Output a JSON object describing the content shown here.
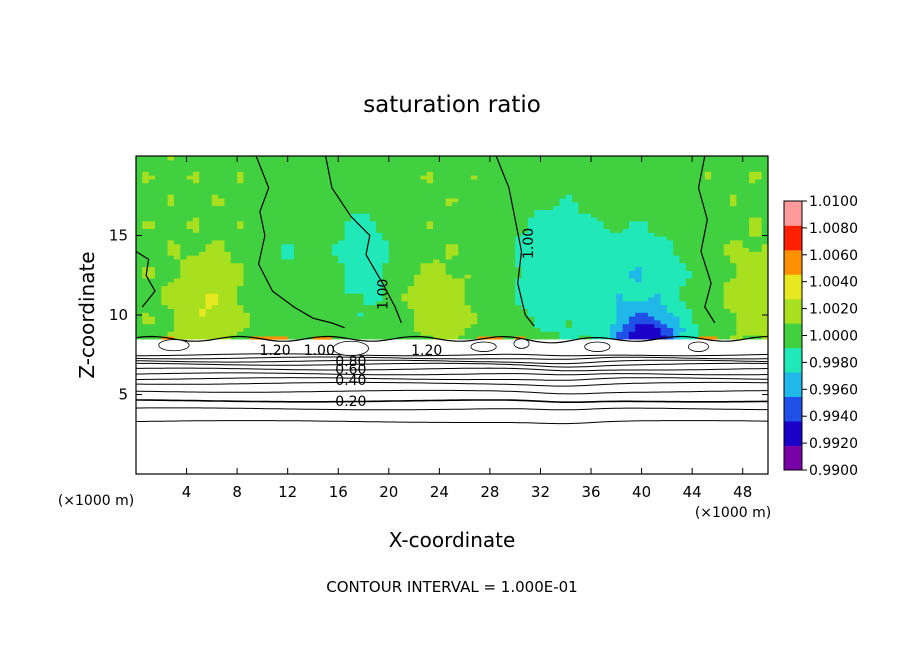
{
  "chart_data": {
    "type": "heatmap",
    "title": "saturation ratio",
    "xlabel": "X-coordinate",
    "ylabel": "Z-coordinate",
    "x_units": "(×1000 m)",
    "y_units": "(×1000 m)",
    "xlim": [
      0,
      50
    ],
    "ylim": [
      0,
      20
    ],
    "x_ticks": [
      4,
      8,
      12,
      16,
      20,
      24,
      28,
      32,
      36,
      40,
      44,
      48
    ],
    "y_ticks": [
      5,
      10,
      15
    ],
    "colorbar": {
      "min": 0.99,
      "max": 1.01,
      "tick_labels": [
        "1.0100",
        "1.0080",
        "1.0060",
        "1.0040",
        "1.0020",
        "1.0000",
        "0.9980",
        "0.9960",
        "0.9940",
        "0.9920",
        "0.9900"
      ],
      "colors": [
        "#7a00a8",
        "#1a00c8",
        "#2050e8",
        "#20b8e8",
        "#20e8b8",
        "#40d040",
        "#a8e020",
        "#e8e820",
        "#ff9000",
        "#ff2000",
        "#ff9a9a"
      ]
    },
    "contour_interval_label": "CONTOUR INTERVAL = 1.000E-01",
    "contour_levels": [
      0.2,
      0.4,
      0.6,
      0.8,
      1.0,
      1.2
    ],
    "contour_labels": [
      {
        "text": "0.20",
        "x": 17,
        "z": 4.6
      },
      {
        "text": "0.40",
        "x": 17,
        "z": 5.9
      },
      {
        "text": "0.60",
        "x": 17,
        "z": 6.6
      },
      {
        "text": "0.80",
        "x": 17,
        "z": 7.1
      },
      {
        "text": "1.20",
        "x": 11,
        "z": 7.8
      },
      {
        "text": "1.00",
        "x": 14.5,
        "z": 7.8
      },
      {
        "text": "1.20",
        "x": 23,
        "z": 7.8
      },
      {
        "text": "1.00",
        "x": 31,
        "z": 14.5,
        "rotate": -90
      },
      {
        "text": "1.00",
        "x": 19.5,
        "z": 11.3,
        "rotate": -90
      }
    ],
    "cloud_base_z": 7.5,
    "field_summary": {
      "above_cloud_layer": "mostly 1.0000–1.0020 (green) with cyan minima near x=18 and x=32–44",
      "minimum_near": {
        "x": 40.5,
        "z": 7.8,
        "value": 0.992
      },
      "maxima_near": [
        {
          "x": 5.5,
          "z": 10.8,
          "value": 1.003
        },
        {
          "x": 24,
          "z": 10.8,
          "value": 1.0025
        },
        {
          "x": 49,
          "z": 11.5,
          "value": 1.0025
        }
      ]
    }
  },
  "colors": {
    "background": "#ffffff",
    "axis": "#000000",
    "contour": "#000000"
  }
}
